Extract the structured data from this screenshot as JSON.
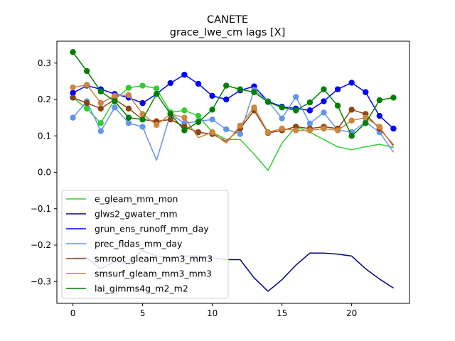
{
  "chart_data": {
    "type": "line",
    "title": "CANETE",
    "subtitle": "grace_lwe_cm lags [X]",
    "xlabel": "",
    "ylabel": "",
    "xlim": [
      -1.15,
      24.15
    ],
    "ylim": [
      -0.36,
      0.36
    ],
    "xticks": [
      0,
      5,
      10,
      15,
      20
    ],
    "yticks": [
      -0.3,
      -0.2,
      -0.1,
      0.0,
      0.1,
      0.2,
      0.3
    ],
    "ytick_labels": [
      "−0.3",
      "−0.2",
      "−0.1",
      "0.0",
      "0.1",
      "0.2",
      "0.3"
    ],
    "grid": false,
    "legend_position": "lower-left",
    "x": [
      0,
      1,
      2,
      3,
      4,
      5,
      6,
      7,
      8,
      9,
      10,
      11,
      12,
      13,
      14,
      15,
      16,
      17,
      18,
      19,
      20,
      21,
      22,
      23
    ],
    "series": [
      {
        "name": "e_gleam_mm_mon",
        "color": "#32cd32",
        "values": [
          0.205,
          0.175,
          0.135,
          0.2,
          0.232,
          0.238,
          0.23,
          0.165,
          0.17,
          0.155,
          0.11,
          0.09,
          0.09,
          0.05,
          0.005,
          0.08,
          0.125,
          0.11,
          0.09,
          0.07,
          0.062,
          0.07,
          0.077,
          0.068
        ],
        "markers": [
          true,
          true,
          true,
          false,
          true,
          true,
          true,
          true,
          true,
          true,
          true,
          false,
          false,
          false,
          false,
          false,
          true,
          false,
          false,
          false,
          false,
          false,
          false,
          false
        ]
      },
      {
        "name": "glws2_gwater_mm",
        "color": "#00008b",
        "values": [
          -0.235,
          -0.235,
          -0.265,
          -0.245,
          -0.25,
          -0.215,
          -0.23,
          -0.235,
          -0.23,
          -0.23,
          -0.235,
          -0.24,
          -0.24,
          -0.29,
          -0.327,
          -0.295,
          -0.255,
          -0.222,
          -0.222,
          -0.225,
          -0.23,
          -0.265,
          -0.293,
          -0.318
        ],
        "markers": [
          false,
          false,
          false,
          false,
          false,
          false,
          false,
          false,
          false,
          false,
          false,
          false,
          false,
          false,
          false,
          false,
          false,
          false,
          false,
          false,
          false,
          false,
          false,
          false
        ]
      },
      {
        "name": "grun_ens_runoff_mm_day",
        "color": "#0000ff",
        "values": [
          0.218,
          0.238,
          0.228,
          0.215,
          0.205,
          0.19,
          0.215,
          0.245,
          0.268,
          0.243,
          0.21,
          0.2,
          0.225,
          0.236,
          0.195,
          0.18,
          0.175,
          0.17,
          0.195,
          0.228,
          0.246,
          0.22,
          0.155,
          0.12
        ],
        "markers": [
          true,
          true,
          true,
          true,
          true,
          true,
          true,
          true,
          true,
          true,
          true,
          true,
          true,
          true,
          true,
          true,
          true,
          true,
          true,
          true,
          true,
          true,
          true,
          true
        ]
      },
      {
        "name": "prec_fldas_mm_day",
        "color": "#6495ed",
        "values": [
          0.15,
          0.195,
          0.113,
          0.178,
          0.135,
          0.125,
          0.033,
          0.16,
          0.135,
          0.14,
          0.145,
          0.118,
          0.105,
          0.226,
          0.195,
          0.148,
          0.207,
          0.134,
          0.164,
          0.116,
          0.11,
          0.138,
          0.11,
          0.055
        ],
        "markers": [
          true,
          true,
          true,
          true,
          true,
          true,
          false,
          true,
          true,
          true,
          true,
          true,
          true,
          true,
          true,
          true,
          true,
          true,
          true,
          true,
          true,
          true,
          true,
          false
        ]
      },
      {
        "name": "smroot_gleam_mm3_mm3",
        "color": "#8b4513",
        "values": [
          0.205,
          0.19,
          0.175,
          0.2,
          0.175,
          0.145,
          0.14,
          0.145,
          0.125,
          0.11,
          0.105,
          0.085,
          0.12,
          0.17,
          0.108,
          0.115,
          0.125,
          0.12,
          0.125,
          0.12,
          0.172,
          0.16,
          0.12,
          0.075
        ],
        "markers": [
          true,
          true,
          true,
          true,
          true,
          true,
          true,
          true,
          true,
          true,
          true,
          false,
          true,
          true,
          true,
          true,
          true,
          true,
          true,
          true,
          true,
          true,
          true,
          false
        ]
      },
      {
        "name": "smsurf_gleam_mm3_mm3",
        "color": "#cd853f",
        "values": [
          0.233,
          0.24,
          0.19,
          0.21,
          0.212,
          0.16,
          0.13,
          0.16,
          0.15,
          0.095,
          0.11,
          0.08,
          0.128,
          0.178,
          0.11,
          0.12,
          0.115,
          0.115,
          0.12,
          0.115,
          0.142,
          0.15,
          0.125,
          0.07
        ],
        "markers": [
          true,
          true,
          true,
          true,
          true,
          true,
          true,
          true,
          true,
          false,
          true,
          false,
          true,
          true,
          true,
          true,
          true,
          true,
          true,
          true,
          true,
          true,
          true,
          false
        ]
      },
      {
        "name": "lai_gimms4g_m2_m2",
        "color": "#008000",
        "values": [
          0.33,
          0.278,
          0.222,
          0.195,
          0.15,
          0.145,
          0.215,
          0.16,
          0.115,
          0.138,
          0.172,
          0.238,
          0.228,
          0.22,
          0.193,
          0.178,
          0.17,
          0.192,
          0.228,
          0.183,
          0.1,
          0.135,
          0.198,
          0.205
        ],
        "markers": [
          true,
          true,
          true,
          true,
          true,
          true,
          true,
          true,
          true,
          true,
          true,
          true,
          true,
          true,
          true,
          true,
          true,
          true,
          true,
          true,
          true,
          true,
          true,
          true
        ]
      }
    ]
  }
}
